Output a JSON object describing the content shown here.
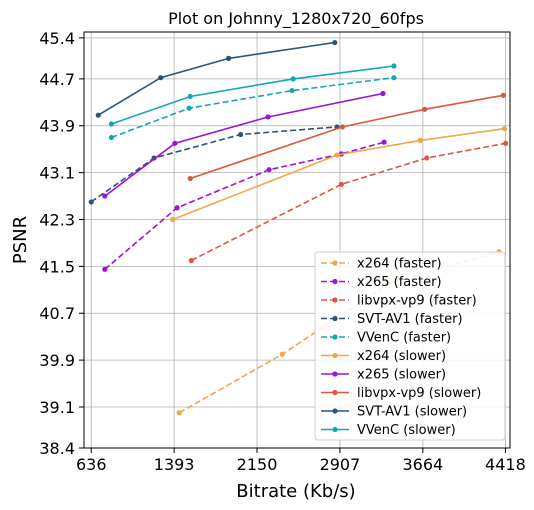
{
  "chart_data": {
    "type": "line",
    "title": "Plot on Johnny_1280x720_60fps",
    "xlabel": "Bitrate (Kb/s)",
    "ylabel": "PSNR",
    "xlim": [
      570,
      4460
    ],
    "ylim": [
      38.4,
      45.5
    ],
    "xticks": [
      636,
      1393,
      2150,
      2907,
      3664,
      4418
    ],
    "xtick_labels": [
      "636",
      "1393",
      "2150",
      "2907",
      "3664",
      "4418"
    ],
    "yticks": [
      38.4,
      39.1,
      39.9,
      40.7,
      41.5,
      42.3,
      43.1,
      43.9,
      44.7,
      45.4
    ],
    "ytick_labels": [
      "38.4",
      "39.1",
      "39.9",
      "40.7",
      "41.5",
      "42.3",
      "43.1",
      "43.9",
      "44.7",
      "45.4"
    ],
    "grid": true,
    "legend_position": "lower-right",
    "series": [
      {
        "name": "x264 (faster)",
        "color": "#f0a64a",
        "dash": true,
        "x": [
          1440,
          2380,
          3350,
          4360
        ],
        "y": [
          39.0,
          40.0,
          41.2,
          41.75
        ]
      },
      {
        "name": "x265 (faster)",
        "color": "#9b12d9",
        "dash": true,
        "x": [
          760,
          1420,
          2260,
          2920,
          3310
        ],
        "y": [
          41.45,
          42.5,
          43.15,
          43.42,
          43.62
        ]
      },
      {
        "name": "libvpx-vp9 (faster)",
        "color": "#dd5641",
        "dash": true,
        "x": [
          1550,
          2920,
          3700,
          4420
        ],
        "y": [
          41.6,
          42.9,
          43.35,
          43.6
        ]
      },
      {
        "name": "SVT-AV1 (faster)",
        "color": "#2a5577",
        "dash": true,
        "x": [
          636,
          1210,
          2000,
          2880
        ],
        "y": [
          42.6,
          43.35,
          43.75,
          43.88
        ]
      },
      {
        "name": "VVenC (faster)",
        "color": "#13a7b0",
        "dash": true,
        "x": [
          820,
          1530,
          2470,
          3400
        ],
        "y": [
          43.7,
          44.2,
          44.5,
          44.72
        ]
      },
      {
        "name": "x264 (slower)",
        "color": "#f0a64a",
        "dash": false,
        "x": [
          1380,
          2880,
          3640,
          4410
        ],
        "y": [
          42.3,
          43.4,
          43.65,
          43.85
        ]
      },
      {
        "name": "x265 (slower)",
        "color": "#9b12d9",
        "dash": false,
        "x": [
          760,
          1400,
          2250,
          3300
        ],
        "y": [
          42.7,
          43.6,
          44.05,
          44.45
        ]
      },
      {
        "name": "libvpx-vp9 (slower)",
        "color": "#dd5641",
        "dash": false,
        "x": [
          1540,
          2930,
          3680,
          4400
        ],
        "y": [
          43.0,
          43.88,
          44.18,
          44.42
        ]
      },
      {
        "name": "SVT-AV1 (slower)",
        "color": "#2a5577",
        "dash": false,
        "x": [
          700,
          1270,
          1890,
          2860
        ],
        "y": [
          44.08,
          44.72,
          45.05,
          45.32
        ]
      },
      {
        "name": "VVenC (slower)",
        "color": "#13a7b0",
        "dash": false,
        "x": [
          820,
          1540,
          2480,
          3400
        ],
        "y": [
          43.93,
          44.4,
          44.7,
          44.92
        ]
      }
    ]
  }
}
